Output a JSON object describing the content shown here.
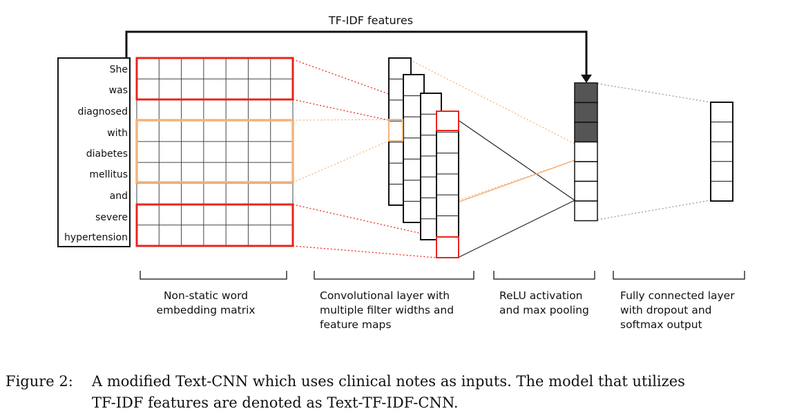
{
  "tfidf_label": "TF-IDF features",
  "words": [
    "She",
    "was",
    "diagnosed",
    "with",
    "diabetes",
    "mellitus",
    "and",
    "severe",
    "hypertension"
  ],
  "section_labels": [
    [
      "Non-static word",
      "embedding matrix"
    ],
    [
      "Convolutional layer with",
      "multiple filter widths and",
      "feature maps"
    ],
    [
      "ReLU activation",
      "and max pooling"
    ],
    [
      "Fully connected layer",
      "with dropout and",
      "softmax output"
    ]
  ],
  "caption": {
    "label": "Figure 2:",
    "line1": "A modified Text-CNN which uses clinical notes as inputs.  The model that utilizes",
    "line2": "TF-IDF features are denoted as Text-TF-IDF-CNN."
  },
  "colors": {
    "red_filter": "#e8251b",
    "orange_filter": "#f6b27a",
    "line": "#111111",
    "tfidf_cell": "#555555",
    "dotted_gray": "#9a9a9a"
  }
}
